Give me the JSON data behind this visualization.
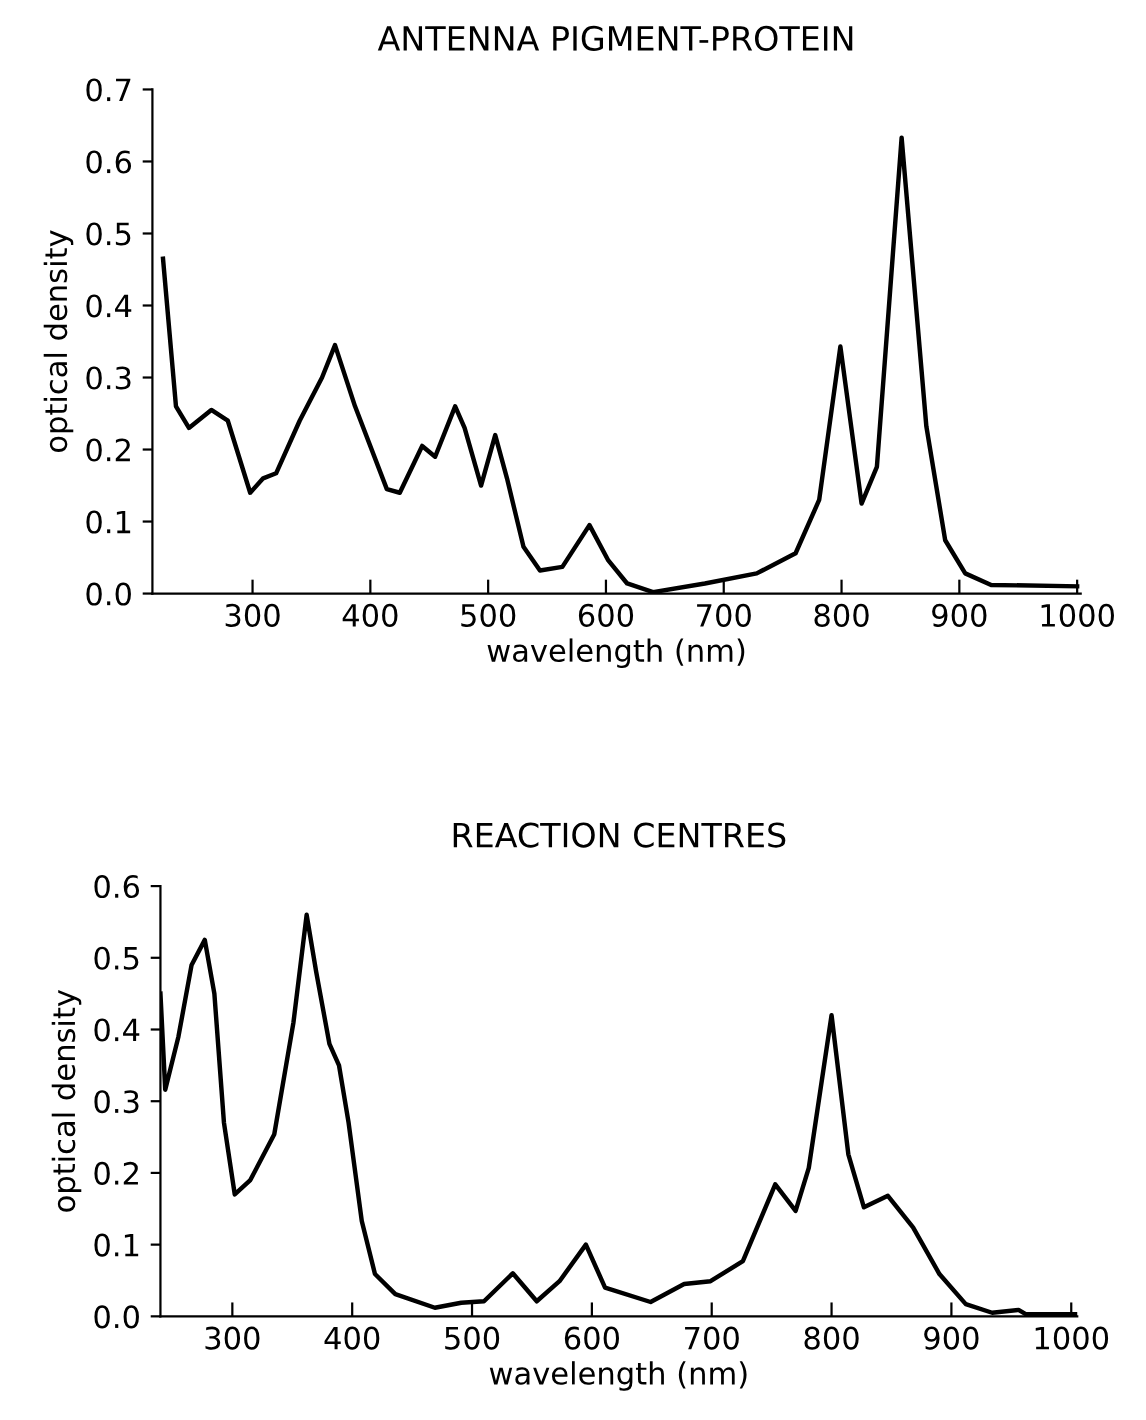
{
  "chart_data": [
    {
      "type": "line",
      "title": "ANTENNA PIGMENT-PROTEIN",
      "xlabel": "wavelength (nm)",
      "ylabel": "optical density",
      "xlim": [
        215,
        1003
      ],
      "ylim": [
        0,
        0.7
      ],
      "xticks": [
        300,
        400,
        500,
        600,
        700,
        800,
        900,
        1000
      ],
      "yticks": [
        {
          "value": 0,
          "label": "0.0"
        },
        0.1,
        0.2,
        0.3,
        0.4,
        0.5,
        0.6,
        0.7
      ],
      "grid": false,
      "legend": false,
      "series": [
        {
          "color": "#000000",
          "x": [
            224,
            235,
            246,
            265,
            279,
            298,
            309,
            320,
            340,
            359,
            370,
            387,
            414,
            425,
            444,
            455,
            472,
            480,
            494,
            506,
            516,
            530,
            544,
            563,
            586,
            602,
            618,
            640,
            684,
            728,
            761,
            781,
            799,
            817,
            830,
            851,
            872,
            888,
            905,
            927,
            1000
          ],
          "values": [
            0.465,
            0.26,
            0.23,
            0.255,
            0.24,
            0.14,
            0.16,
            0.167,
            0.24,
            0.3,
            0.345,
            0.26,
            0.145,
            0.14,
            0.205,
            0.19,
            0.26,
            0.23,
            0.15,
            0.22,
            0.16,
            0.065,
            0.032,
            0.037,
            0.095,
            0.046,
            0.014,
            0.002,
            0.014,
            0.028,
            0.056,
            0.13,
            0.343,
            0.125,
            0.176,
            0.633,
            0.232,
            0.074,
            0.028,
            0.012,
            0.01
          ]
        }
      ]
    },
    {
      "type": "line",
      "title": "REACTION CENTRES",
      "xlabel": "wavelength (nm)",
      "ylabel": "optical density",
      "xlim": [
        240,
        1005
      ],
      "ylim": [
        0,
        0.6
      ],
      "xticks": [
        300,
        400,
        500,
        600,
        700,
        800,
        900,
        1000
      ],
      "yticks": [
        {
          "value": 0,
          "label": "0.0"
        },
        0.1,
        0.2,
        0.3,
        0.4,
        0.5,
        0.6
      ],
      "grid": false,
      "legend": false,
      "series": [
        {
          "color": "#000000",
          "x": [
            240,
            244,
            255,
            266,
            277,
            285,
            293,
            302,
            315,
            335,
            351,
            362,
            370,
            381,
            389,
            397,
            408,
            419,
            436,
            469,
            491,
            510,
            534,
            554,
            573,
            595,
            611,
            649,
            677,
            699,
            726,
            753,
            770,
            781,
            800,
            814,
            827,
            847,
            868,
            890,
            912,
            934,
            956,
            962,
            1005
          ],
          "values": [
            0.45,
            0.316,
            0.39,
            0.49,
            0.525,
            0.45,
            0.27,
            0.17,
            0.19,
            0.254,
            0.41,
            0.56,
            0.48,
            0.38,
            0.35,
            0.27,
            0.133,
            0.059,
            0.031,
            0.012,
            0.019,
            0.021,
            0.06,
            0.021,
            0.049,
            0.1,
            0.04,
            0.02,
            0.045,
            0.049,
            0.077,
            0.184,
            0.147,
            0.207,
            0.42,
            0.226,
            0.152,
            0.168,
            0.124,
            0.059,
            0.017,
            0.005,
            0.009,
            0.003,
            0.003
          ]
        }
      ]
    }
  ]
}
